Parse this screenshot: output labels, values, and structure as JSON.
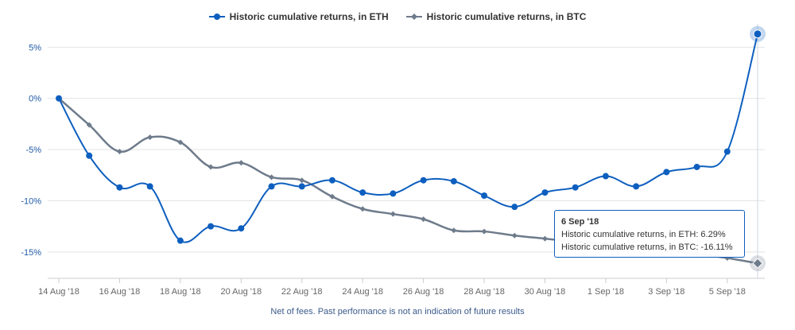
{
  "chart_data": {
    "type": "line",
    "title": "",
    "xlabel": "",
    "ylabel": "",
    "x": [
      "14 Aug '18",
      "15 Aug '18",
      "16 Aug '18",
      "17 Aug '18",
      "18 Aug '18",
      "19 Aug '18",
      "20 Aug '18",
      "21 Aug '18",
      "22 Aug '18",
      "23 Aug '18",
      "24 Aug '18",
      "25 Aug '18",
      "26 Aug '18",
      "27 Aug '18",
      "28 Aug '18",
      "29 Aug '18",
      "30 Aug '18",
      "31 Aug '18",
      "1 Sep '18",
      "2 Sep '18",
      "3 Sep '18",
      "4 Sep '18",
      "5 Sep '18",
      "6 Sep '18"
    ],
    "x_tick_labels": [
      "14 Aug '18",
      "16 Aug '18",
      "18 Aug '18",
      "20 Aug '18",
      "22 Aug '18",
      "24 Aug '18",
      "26 Aug '18",
      "28 Aug '18",
      "30 Aug '18",
      "1 Sep '18",
      "3 Sep '18",
      "5 Sep '18"
    ],
    "y_ticks": [
      "5%",
      "0%",
      "-5%",
      "-10%",
      "-15%"
    ],
    "y_tick_values": [
      5,
      0,
      -5,
      -10,
      -15
    ],
    "ylim": [
      -17.5,
      6.5
    ],
    "grid": "horizontal",
    "legend_position": "top-center",
    "series": [
      {
        "name": "Historic cumulative returns, in ETH",
        "color": "#0d5fbf",
        "marker": "circle",
        "values": [
          0,
          -5.6,
          -8.7,
          -8.6,
          -13.9,
          -12.5,
          -12.7,
          -8.6,
          -8.6,
          -8.0,
          -9.2,
          -9.3,
          -8.0,
          -8.1,
          -9.5,
          -10.6,
          -9.2,
          -8.7,
          -7.6,
          -8.6,
          -7.2,
          -6.7,
          -5.2,
          6.29
        ]
      },
      {
        "name": "Historic cumulative returns, in BTC",
        "color": "#6e7b8b",
        "marker": "diamond",
        "values": [
          0,
          -2.6,
          -5.2,
          -3.8,
          -4.3,
          -6.7,
          -6.3,
          -7.7,
          -8.0,
          -9.6,
          -10.8,
          -11.3,
          -11.8,
          -12.9,
          -13.0,
          -13.4,
          -13.7,
          -14.0,
          -14.2,
          -14.5,
          -14.8,
          -15.2,
          -15.6,
          -16.11
        ]
      }
    ],
    "tooltip": {
      "date": "6 Sep '18",
      "line_eth": "Historic cumulative returns, in ETH: 6.29%",
      "line_btc": "Historic cumulative returns, in BTC: -16.11%"
    },
    "footnote": "Net of fees. Past performance is not an indication of future results"
  }
}
